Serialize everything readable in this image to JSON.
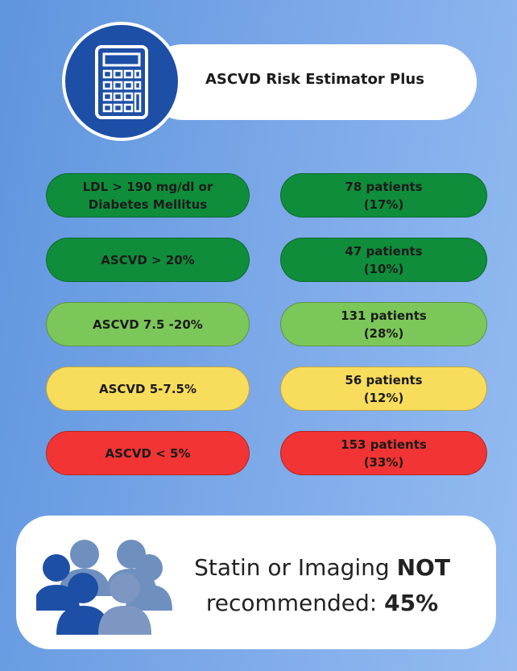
{
  "header": {
    "title": "ASCVD Risk Estimator Plus"
  },
  "rows": [
    {
      "label": [
        "LDL > 190 mg/dl or",
        "Diabetes Mellitus"
      ],
      "result": [
        "78 patients",
        "(17%)"
      ],
      "color": "#0f8d3b"
    },
    {
      "label": [
        "ASCVD > 20%"
      ],
      "result": [
        "47 patients",
        "(10%)"
      ],
      "color": "#0f8d3b"
    },
    {
      "label": [
        "ASCVD 7.5 -20%"
      ],
      "result": [
        "131 patients",
        "(28%)"
      ],
      "color": "#7cc75a"
    },
    {
      "label": [
        "ASCVD 5-7.5%"
      ],
      "result": [
        "56 patients",
        "(12%)"
      ],
      "color": "#f8dc5c"
    },
    {
      "label": [
        "ASCVD < 5%"
      ],
      "result": [
        "153 patients",
        "(33%)"
      ],
      "color": "#f23434"
    }
  ],
  "footer": {
    "line1": "Statin or Imaging",
    "emphasis": "NOT",
    "line2": "recommended:",
    "value": "45%"
  }
}
